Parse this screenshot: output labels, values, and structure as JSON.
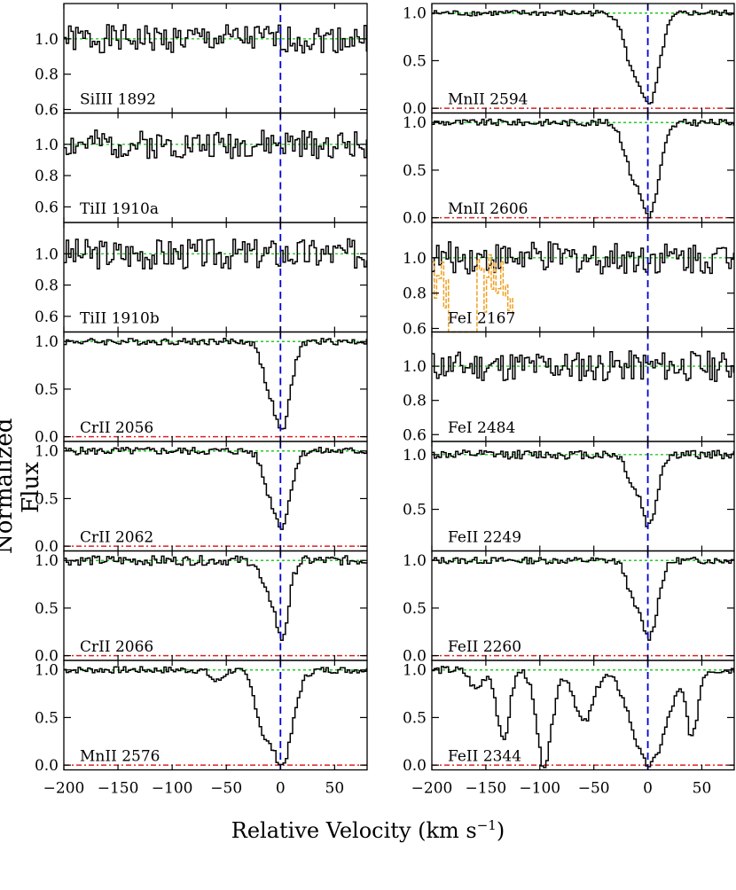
{
  "chart_data": {
    "type": "line",
    "ylabel": "Normalized Flux",
    "xlabel_main": "Relative Velocity  (km s",
    "xlabel_sup": "−1",
    "xlabel_close": ")",
    "xlim": [
      -200,
      80
    ],
    "x_ticks": [
      -200,
      -150,
      -100,
      -50,
      0,
      50
    ],
    "x_tick_labels": [
      "−200",
      "−150",
      "−100",
      "−50",
      "0",
      "50"
    ],
    "colors": {
      "spectrum": "#000000",
      "blend": "#f0a020",
      "continuum": "#22cc22",
      "zero": "#dd2222",
      "center": "#0000dd"
    },
    "panels": [
      {
        "col": 0,
        "row": 0,
        "label": "SiIII 1892",
        "ylim": [
          0.58,
          1.2
        ],
        "yticks": [
          0.6,
          0.8,
          1.0
        ],
        "ytick_labels": [
          "0.6",
          "0.8",
          "1.0"
        ],
        "zero_line": false,
        "absorption": [],
        "noise": 0.08,
        "seed": 1
      },
      {
        "col": 0,
        "row": 1,
        "label": "TiII 1910a",
        "ylim": [
          0.5,
          1.2
        ],
        "yticks": [
          0.6,
          0.8,
          1.0
        ],
        "ytick_labels": [
          "0.6",
          "0.8",
          "1.0"
        ],
        "zero_line": false,
        "absorption": [],
        "noise": 0.09,
        "seed": 2
      },
      {
        "col": 0,
        "row": 2,
        "label": "TiII 1910b",
        "ylim": [
          0.5,
          1.2
        ],
        "yticks": [
          0.6,
          0.8,
          1.0
        ],
        "ytick_labels": [
          "0.6",
          "0.8",
          "1.0"
        ],
        "zero_line": false,
        "absorption": [],
        "noise": 0.1,
        "seed": 3
      },
      {
        "col": 0,
        "row": 3,
        "label": "CrII 2056",
        "ylim": [
          -0.05,
          1.1
        ],
        "yticks": [
          0.0,
          0.5,
          1.0
        ],
        "ytick_labels": [
          "0.0",
          "0.5",
          "1.0"
        ],
        "zero_line": true,
        "absorption": [
          {
            "center": 0,
            "depth": 0.94,
            "width": 11
          },
          {
            "center": -12,
            "depth": 0.35,
            "width": 9
          }
        ],
        "noise": 0.035,
        "seed": 4
      },
      {
        "col": 0,
        "row": 4,
        "label": "CrII 2062",
        "ylim": [
          -0.05,
          1.1
        ],
        "yticks": [
          0.0,
          0.5,
          1.0
        ],
        "ytick_labels": [
          "0.0",
          "0.5",
          "1.0"
        ],
        "zero_line": true,
        "absorption": [
          {
            "center": 0,
            "depth": 0.78,
            "width": 11
          },
          {
            "center": -12,
            "depth": 0.3,
            "width": 9
          }
        ],
        "noise": 0.04,
        "seed": 5
      },
      {
        "col": 0,
        "row": 5,
        "label": "CrII 2066",
        "ylim": [
          -0.05,
          1.1
        ],
        "yticks": [
          0.0,
          0.5,
          1.0
        ],
        "ytick_labels": [
          "0.0",
          "0.5",
          "1.0"
        ],
        "zero_line": true,
        "absorption": [
          {
            "center": 0,
            "depth": 0.82,
            "width": 9
          },
          {
            "center": -14,
            "depth": 0.3,
            "width": 8
          }
        ],
        "noise": 0.05,
        "seed": 6
      },
      {
        "col": 0,
        "row": 6,
        "label": "MnII 2576",
        "ylim": [
          -0.05,
          1.1
        ],
        "yticks": [
          0.0,
          0.5,
          1.0
        ],
        "ytick_labels": [
          "0.0",
          "0.5",
          "1.0"
        ],
        "zero_line": true,
        "absorption": [
          {
            "center": 0,
            "depth": 1.0,
            "width": 14
          },
          {
            "center": -15,
            "depth": 0.6,
            "width": 12
          },
          {
            "center": -60,
            "depth": 0.12,
            "width": 8
          }
        ],
        "noise": 0.035,
        "seed": 7
      },
      {
        "col": 1,
        "row": 0,
        "label": "MnII 2594",
        "ylim": [
          -0.05,
          1.1
        ],
        "yticks": [
          0.0,
          0.5,
          1.0
        ],
        "ytick_labels": [
          "0.0",
          "0.5",
          "1.0"
        ],
        "zero_line": true,
        "absorption": [
          {
            "center": 0,
            "depth": 0.97,
            "width": 13
          },
          {
            "center": -15,
            "depth": 0.5,
            "width": 11
          }
        ],
        "noise": 0.03,
        "seed": 8
      },
      {
        "col": 1,
        "row": 1,
        "label": "MnII 2606",
        "ylim": [
          -0.05,
          1.1
        ],
        "yticks": [
          0.0,
          0.5,
          1.0
        ],
        "ytick_labels": [
          "0.0",
          "0.5",
          "1.0"
        ],
        "zero_line": true,
        "absorption": [
          {
            "center": 0,
            "depth": 0.97,
            "width": 13
          },
          {
            "center": -15,
            "depth": 0.45,
            "width": 11
          }
        ],
        "noise": 0.035,
        "seed": 9
      },
      {
        "col": 1,
        "row": 2,
        "label": "FeI 2167",
        "ylim": [
          0.58,
          1.2
        ],
        "yticks": [
          0.6,
          0.8,
          1.0
        ],
        "ytick_labels": [
          "0.6",
          "0.8",
          "1.0"
        ],
        "zero_line": false,
        "absorption": [],
        "noise": 0.09,
        "seed": 10,
        "blend": [
          -200,
          -125
        ]
      },
      {
        "col": 1,
        "row": 3,
        "label": "FeI 2484",
        "ylim": [
          0.56,
          1.2
        ],
        "yticks": [
          0.6,
          0.8,
          1.0
        ],
        "ytick_labels": [
          "0.6",
          "0.8",
          "1.0"
        ],
        "zero_line": false,
        "absorption": [],
        "noise": 0.09,
        "seed": 11
      },
      {
        "col": 1,
        "row": 4,
        "label": "FeII 2249",
        "ylim": [
          0.12,
          1.12
        ],
        "yticks": [
          0.5,
          1.0
        ],
        "ytick_labels": [
          "0.5",
          "1.0"
        ],
        "zero_line": false,
        "absorption": [
          {
            "center": 0,
            "depth": 0.65,
            "width": 10
          },
          {
            "center": -15,
            "depth": 0.25,
            "width": 8
          }
        ],
        "noise": 0.04,
        "seed": 12
      },
      {
        "col": 1,
        "row": 5,
        "label": "FeII 2260",
        "ylim": [
          -0.05,
          1.1
        ],
        "yticks": [
          0.0,
          0.5,
          1.0
        ],
        "ytick_labels": [
          "0.0",
          "0.5",
          "1.0"
        ],
        "zero_line": true,
        "absorption": [
          {
            "center": 0,
            "depth": 0.8,
            "width": 11
          },
          {
            "center": -14,
            "depth": 0.35,
            "width": 9
          }
        ],
        "noise": 0.035,
        "seed": 13
      },
      {
        "col": 1,
        "row": 6,
        "label": "FeII 2344",
        "ylim": [
          -0.05,
          1.1
        ],
        "yticks": [
          0.0,
          0.5,
          1.0
        ],
        "ytick_labels": [
          "0.0",
          "0.5",
          "1.0"
        ],
        "zero_line": true,
        "absorption": [
          {
            "center": 0,
            "depth": 1.0,
            "width": 22
          },
          {
            "center": -97,
            "depth": 1.0,
            "width": 10
          },
          {
            "center": -135,
            "depth": 0.75,
            "width": 8
          },
          {
            "center": 40,
            "depth": 0.7,
            "width": 7
          },
          {
            "center": -60,
            "depth": 0.55,
            "width": 12
          },
          {
            "center": -160,
            "depth": 0.2,
            "width": 8
          }
        ],
        "noise": 0.04,
        "seed": 14
      }
    ]
  }
}
